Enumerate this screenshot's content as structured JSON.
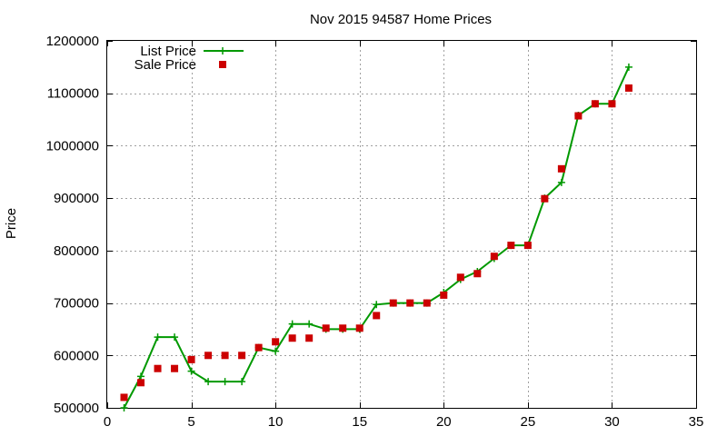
{
  "chart_data": {
    "type": "line",
    "title": "Nov 2015 94587 Home Prices",
    "xlabel": "",
    "ylabel": "Price",
    "xlim": [
      0,
      35
    ],
    "ylim": [
      500000,
      1200000
    ],
    "xticks": [
      0,
      5,
      10,
      15,
      20,
      25,
      30,
      35
    ],
    "yticks": [
      500000,
      600000,
      700000,
      800000,
      900000,
      1000000,
      1100000,
      1200000
    ],
    "grid": true,
    "legend_position": "top-left",
    "x": [
      1,
      2,
      3,
      4,
      5,
      6,
      7,
      8,
      9,
      10,
      11,
      12,
      13,
      14,
      15,
      16,
      17,
      18,
      19,
      20,
      21,
      22,
      23,
      24,
      25,
      26,
      27,
      28,
      29,
      30,
      31
    ],
    "series": [
      {
        "name": "List Price",
        "style": "line-with-plus-markers",
        "color": "#009900",
        "values": [
          500000,
          560000,
          635000,
          635000,
          570000,
          550000,
          550000,
          550000,
          615000,
          608000,
          660000,
          660000,
          650000,
          650000,
          650000,
          697000,
          700000,
          700000,
          700000,
          720000,
          745000,
          760000,
          785000,
          810000,
          810000,
          900000,
          930000,
          1058000,
          1080000,
          1080000,
          1150000
        ]
      },
      {
        "name": "Sale Price",
        "style": "square-markers",
        "color": "#cc0000",
        "values": [
          520000,
          548000,
          575000,
          575000,
          592000,
          600000,
          600000,
          600000,
          615000,
          626000,
          633000,
          633000,
          652000,
          652000,
          652000,
          676000,
          700000,
          700000,
          700000,
          715000,
          749000,
          756000,
          789000,
          810000,
          810000,
          899000,
          956000,
          1057000,
          1080000,
          1080000,
          1110000
        ]
      }
    ]
  }
}
